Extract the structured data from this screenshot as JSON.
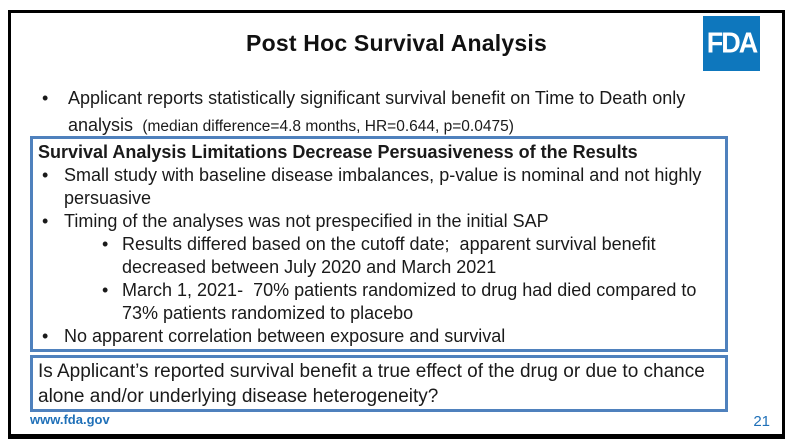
{
  "slide": {
    "title": "Post Hoc Survival Analysis",
    "logo_text": "FDA",
    "footer_url": "www.fda.gov",
    "page_number": "21"
  },
  "intro_bullet": {
    "main": "Applicant reports statistically significant survival benefit on Time to Death only analysis ",
    "note": " (median difference=4.8 months, HR=0.644, p=0.0475)"
  },
  "limitations_box": {
    "heading": "Survival Analysis Limitations Decrease Persuasiveness of the Results",
    "bullets": [
      {
        "text": "Small study with baseline disease imbalances, p-value is nominal and not highly persuasive"
      },
      {
        "text": "Timing of the analyses was not prespecified in the initial SAP",
        "sub_bullets": [
          "Results differed based on the cutoff date;  apparent survival benefit decreased between July 2020 and March 2021",
          "March 1, 2021-  70% patients randomized to drug had died compared to 73% patients randomized to placebo"
        ]
      },
      {
        "text": "No apparent correlation between exposure and survival"
      }
    ]
  },
  "question_box": {
    "text": "Is Applicant’s reported survival benefit a true effect of the drug or due to chance alone and/or underlying disease heterogeneity?"
  },
  "colors": {
    "box_border": "#4F81BD",
    "logo_blue": "#0e77bd",
    "footer_blue": "#1f70b8",
    "slide_border": "#000000"
  }
}
